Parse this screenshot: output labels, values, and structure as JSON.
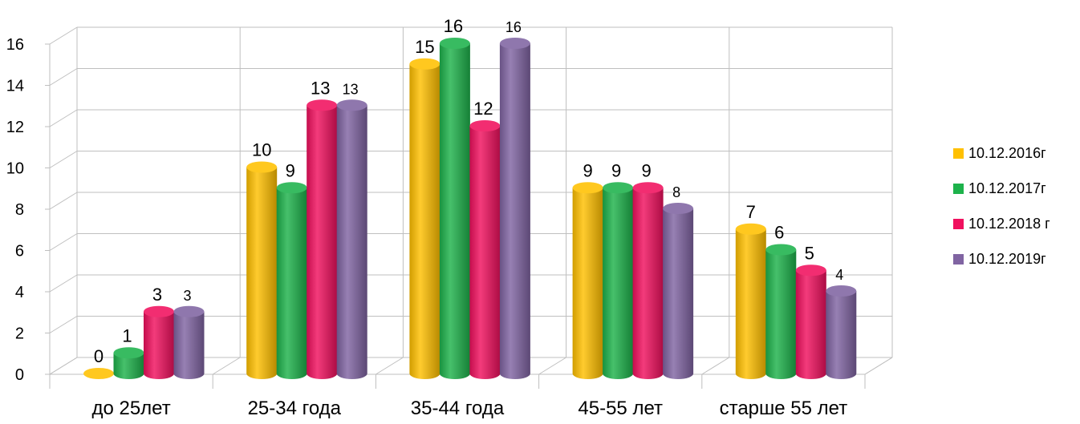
{
  "chart_data": {
    "type": "bar",
    "categories": [
      "до 25лет",
      "25-34 года",
      "35-44 года",
      "45-55 лет",
      "старше 55 лет"
    ],
    "series": [
      {
        "name": "10.12.2016г",
        "values": [
          0,
          10,
          15,
          9,
          7
        ],
        "color": "#FFC000"
      },
      {
        "name": "10.12.2017г",
        "values": [
          1,
          9,
          16,
          9,
          6
        ],
        "color": "#1DB24B"
      },
      {
        "name": "10.12.2018 г",
        "values": [
          3,
          13,
          12,
          9,
          5
        ],
        "color": "#F0105E"
      },
      {
        "name": "10.12.2019г",
        "values": [
          3,
          13,
          16,
          8,
          4
        ],
        "color": "#8064A2"
      }
    ],
    "y_ticks": [
      "0",
      "2",
      "4",
      "6",
      "8",
      "10",
      "12",
      "14",
      "16"
    ],
    "ylim": [
      0,
      16
    ],
    "grid": true,
    "legend_position": "right",
    "style": "3d-cylinder"
  }
}
